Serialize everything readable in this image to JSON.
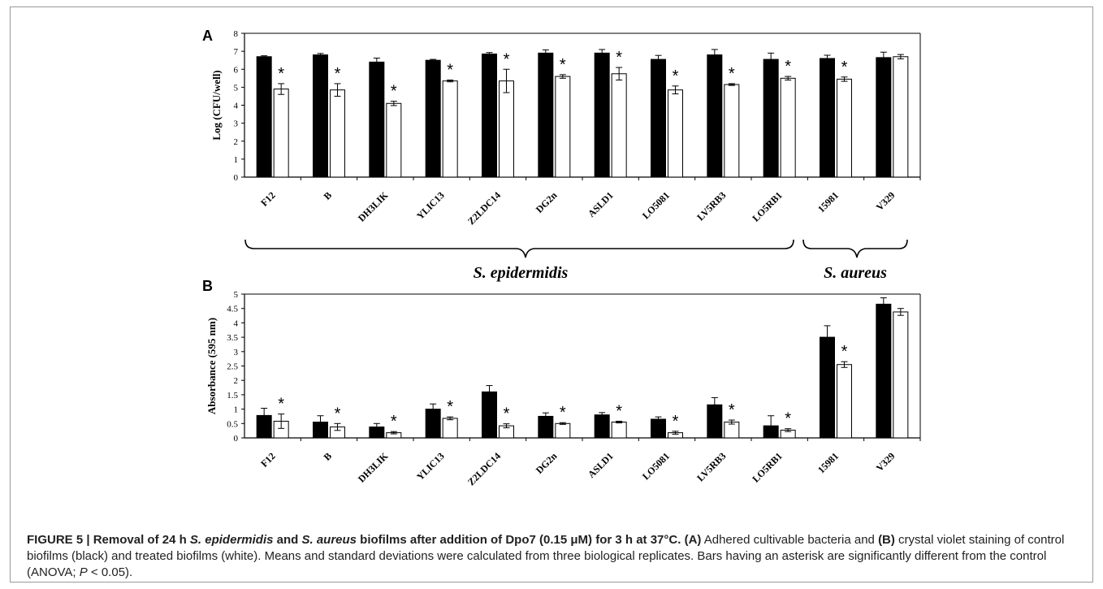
{
  "figure": {
    "caption": {
      "lead_prefix": "FIGURE 5 | Removal of 24 h ",
      "lead_sepi": "S. epidermidis",
      "lead_and": " and ",
      "lead_saur": "S. aureus",
      "lead_suffix": " biofilms after addition of Dpo7 (0.15 μM) for 3 h at 37°C.",
      "panel_a_ref": "(A)",
      "text_a": " Adhered cultivable bacteria and ",
      "panel_b_ref": "(B)",
      "text_b": " crystal violet staining of control biofilms (black) and treated biofilms (white). Means and standard deviations were calculated from three biological replicates. Bars having an asterisk are significantly different from the control (ANOVA; ",
      "p_italic": "P",
      "text_end": " < 0.05)."
    },
    "group_labels": {
      "s_epidermidis": "S. epidermidis",
      "s_aureus": "S. aureus"
    }
  },
  "chart_data": [
    {
      "panel": "A",
      "type": "bar",
      "ylabel": "Log (CFU/well)",
      "ylim": [
        0,
        8
      ],
      "yticks": [
        "0",
        "1",
        "2",
        "3",
        "4",
        "5",
        "6",
        "7",
        "8"
      ],
      "categories": [
        "F12",
        "B",
        "DH3LIK",
        "YLIC13",
        "Z2LDC14",
        "DG2n",
        "ASLD1",
        "LO5081",
        "LV5RB3",
        "LO5RB1",
        "15981",
        "V329"
      ],
      "series": [
        {
          "color": "#000000",
          "values": [
            6.7,
            6.8,
            6.4,
            6.5,
            6.85,
            6.9,
            6.9,
            6.55,
            6.8,
            6.55,
            6.6,
            6.65
          ],
          "errors": [
            0.05,
            0.08,
            0.22,
            0.05,
            0.08,
            0.18,
            0.2,
            0.22,
            0.3,
            0.35,
            0.18,
            0.3
          ]
        },
        {
          "color": "#ffffff",
          "values": [
            4.9,
            4.85,
            4.1,
            5.35,
            5.35,
            5.6,
            5.75,
            4.85,
            5.15,
            5.5,
            5.45,
            6.7
          ],
          "errors": [
            0.3,
            0.35,
            0.12,
            0.05,
            0.65,
            0.1,
            0.35,
            0.22,
            0.05,
            0.1,
            0.12,
            0.12
          ]
        }
      ],
      "asterisks": [
        true,
        true,
        true,
        true,
        true,
        true,
        true,
        true,
        true,
        true,
        true,
        false
      ]
    },
    {
      "panel": "B",
      "type": "bar",
      "ylabel": "Absorbance (595 nm)",
      "ylim": [
        0,
        5
      ],
      "yticks": [
        "0",
        "0.5",
        "1",
        "1.5",
        "2",
        "2.5",
        "3",
        "3.5",
        "4",
        "4.5",
        "5"
      ],
      "categories": [
        "F12",
        "B",
        "DH3LIK",
        "YLIC13",
        "Z2LDC14",
        "DG2n",
        "ASLD1",
        "LO5081",
        "LV5RB3",
        "LO5RB1",
        "15981",
        "V329"
      ],
      "series": [
        {
          "color": "#000000",
          "values": [
            0.78,
            0.55,
            0.38,
            1.0,
            1.6,
            0.75,
            0.8,
            0.65,
            1.15,
            0.42,
            3.5,
            4.65
          ],
          "errors": [
            0.25,
            0.22,
            0.12,
            0.18,
            0.22,
            0.12,
            0.08,
            0.08,
            0.25,
            0.35,
            0.4,
            0.22
          ]
        },
        {
          "color": "#ffffff",
          "values": [
            0.58,
            0.38,
            0.18,
            0.68,
            0.42,
            0.5,
            0.55,
            0.18,
            0.55,
            0.27,
            2.55,
            4.38
          ],
          "errors": [
            0.25,
            0.12,
            0.04,
            0.05,
            0.07,
            0.03,
            0.03,
            0.05,
            0.07,
            0.05,
            0.1,
            0.12
          ]
        }
      ],
      "asterisks": [
        true,
        true,
        true,
        true,
        true,
        true,
        true,
        true,
        true,
        true,
        true,
        false
      ]
    }
  ]
}
